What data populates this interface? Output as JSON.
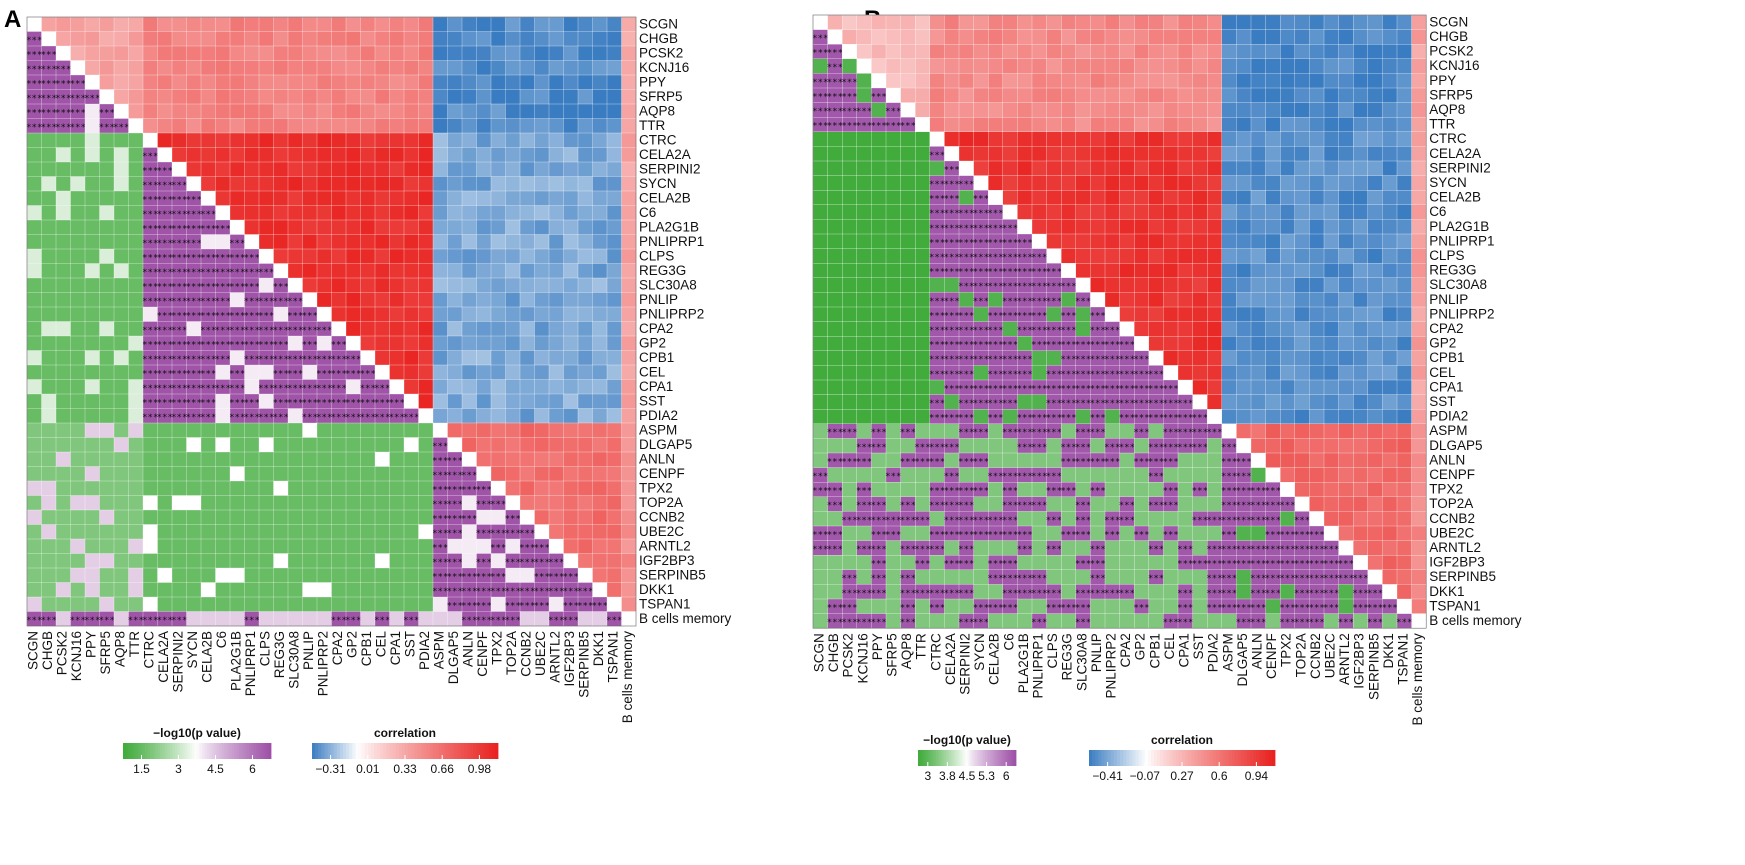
{
  "chart_data": [
    {
      "panel": "A",
      "type": "heatmap",
      "subtype": "correlation-pvalue-triangle",
      "genes": [
        "SCGN",
        "CHGB",
        "PCSK2",
        "KCNJ16",
        "PPY",
        "SFRP5",
        "AQP8",
        "TTR",
        "CTRC",
        "CELA2A",
        "SERPINI2",
        "SYCN",
        "CELA2B",
        "C6",
        "PLA2G1B",
        "PNLIPRP1",
        "CLPS",
        "REG3G",
        "SLC30A8",
        "PNLIP",
        "PNLIPRP2",
        "CPA2",
        "GP2",
        "CPB1",
        "CEL",
        "CPA1",
        "SST",
        "PDIA2",
        "ASPM",
        "DLGAP5",
        "ANLN",
        "CENPF",
        "TPX2",
        "TOP2A",
        "CCNB2",
        "UBE2C",
        "ARNTL2",
        "IGF2BP3",
        "SERPINB5",
        "DKK1",
        "TSPAN1",
        "B cells memory"
      ],
      "groups": {
        "endocrine": [
          "SCGN",
          "CHGB",
          "PCSK2",
          "KCNJ16",
          "PPY",
          "SFRP5",
          "AQP8",
          "TTR"
        ],
        "acinar": [
          "CTRC",
          "CELA2A",
          "SERPINI2",
          "SYCN",
          "CELA2B",
          "C6",
          "PLA2G1B",
          "PNLIPRP1",
          "CLPS",
          "REG3G",
          "SLC30A8",
          "PNLIP",
          "PNLIPRP2",
          "CPA2",
          "GP2",
          "CPB1",
          "CEL",
          "CPA1",
          "SST",
          "PDIA2"
        ],
        "proliferation": [
          "ASPM",
          "DLGAP5",
          "ANLN",
          "CENPF",
          "TPX2",
          "TOP2A",
          "CCNB2",
          "UBE2C",
          "ARNTL2",
          "IGF2BP3",
          "SERPINB5",
          "DKK1",
          "TSPAN1"
        ],
        "cell": [
          "B cells memory"
        ]
      },
      "upper_triangle": "correlation",
      "lower_triangle": "-log10(p value)",
      "approx_correlation_levels": {
        "endocrine_within": 0.35,
        "acinar_within": 0.9,
        "proliferation_within": 0.6,
        "endocrine_vs_acinar": 0.5,
        "acinar_vs_proliferation": -0.2,
        "endocrine_vs_proliferation": -0.28
      },
      "legend_p": {
        "title": "−log10(p value)",
        "ticks": [
          "1.5",
          "3",
          "4.5",
          "6"
        ],
        "range": [
          0,
          6
        ]
      },
      "legend_corr": {
        "title": "correlation",
        "ticks": [
          "−0.31",
          "0.01",
          "0.33",
          "0.66",
          "0.98"
        ],
        "range": [
          -0.31,
          0.98
        ]
      }
    },
    {
      "panel": "B",
      "type": "heatmap",
      "subtype": "correlation-pvalue-triangle",
      "genes": [
        "SCGN",
        "CHGB",
        "PCSK2",
        "KCNJ16",
        "PPY",
        "SFRP5",
        "AQP8",
        "TTR",
        "CTRC",
        "CELA2A",
        "SERPINI2",
        "SYCN",
        "CELA2B",
        "C6",
        "PLA2G1B",
        "PNLIPRP1",
        "CLPS",
        "REG3G",
        "SLC30A8",
        "PNLIP",
        "PNLIPRP2",
        "CPA2",
        "GP2",
        "CPB1",
        "CEL",
        "CPA1",
        "SST",
        "PDIA2",
        "ASPM",
        "DLGAP5",
        "ANLN",
        "CENPF",
        "TPX2",
        "TOP2A",
        "CCNB2",
        "UBE2C",
        "ARNTL2",
        "IGF2BP3",
        "SERPINB5",
        "DKK1",
        "TSPAN1",
        "B cells memory"
      ],
      "groups": {
        "endocrine": [
          "SCGN",
          "CHGB",
          "PCSK2",
          "KCNJ16",
          "PPY",
          "SFRP5",
          "AQP8",
          "TTR"
        ],
        "acinar": [
          "CTRC",
          "CELA2A",
          "SERPINI2",
          "SYCN",
          "CELA2B",
          "C6",
          "PLA2G1B",
          "PNLIPRP1",
          "CLPS",
          "REG3G",
          "SLC30A8",
          "PNLIP",
          "PNLIPRP2",
          "CPA2",
          "GP2",
          "CPB1",
          "CEL",
          "CPA1",
          "SST",
          "PDIA2"
        ],
        "proliferation": [
          "ASPM",
          "DLGAP5",
          "ANLN",
          "CENPF",
          "TPX2",
          "TOP2A",
          "CCNB2",
          "UBE2C",
          "ARNTL2",
          "IGF2BP3",
          "SERPINB5",
          "DKK1",
          "TSPAN1"
        ],
        "cell": [
          "B cells memory"
        ]
      },
      "upper_triangle": "correlation",
      "lower_triangle": "-log10(p value)",
      "approx_correlation_levels": {
        "endocrine_within": 0.25,
        "acinar_within": 0.85,
        "proliferation_within": 0.6,
        "endocrine_vs_acinar": 0.45,
        "acinar_vs_proliferation": -0.35,
        "endocrine_vs_proliferation": -0.38
      },
      "legend_p": {
        "title": "−log10(p value)",
        "ticks": [
          "3",
          "3.8",
          "4.5",
          "5.3",
          "6"
        ],
        "range": [
          3,
          6
        ]
      },
      "legend_corr": {
        "title": "correlation",
        "ticks": [
          "−0.41",
          "−0.07",
          "0.27",
          "0.6",
          "0.94"
        ],
        "range": [
          -0.41,
          0.94
        ]
      }
    }
  ],
  "colors": {
    "green": "#41ab3c",
    "purple": "#9c4fa6",
    "pale_green": "#d9efd2",
    "pale_purple": "#e3cfe6",
    "blue": "#3a7cc1",
    "white": "#ffffff",
    "red": "#e8211e",
    "diagonal": "#ffffff"
  }
}
